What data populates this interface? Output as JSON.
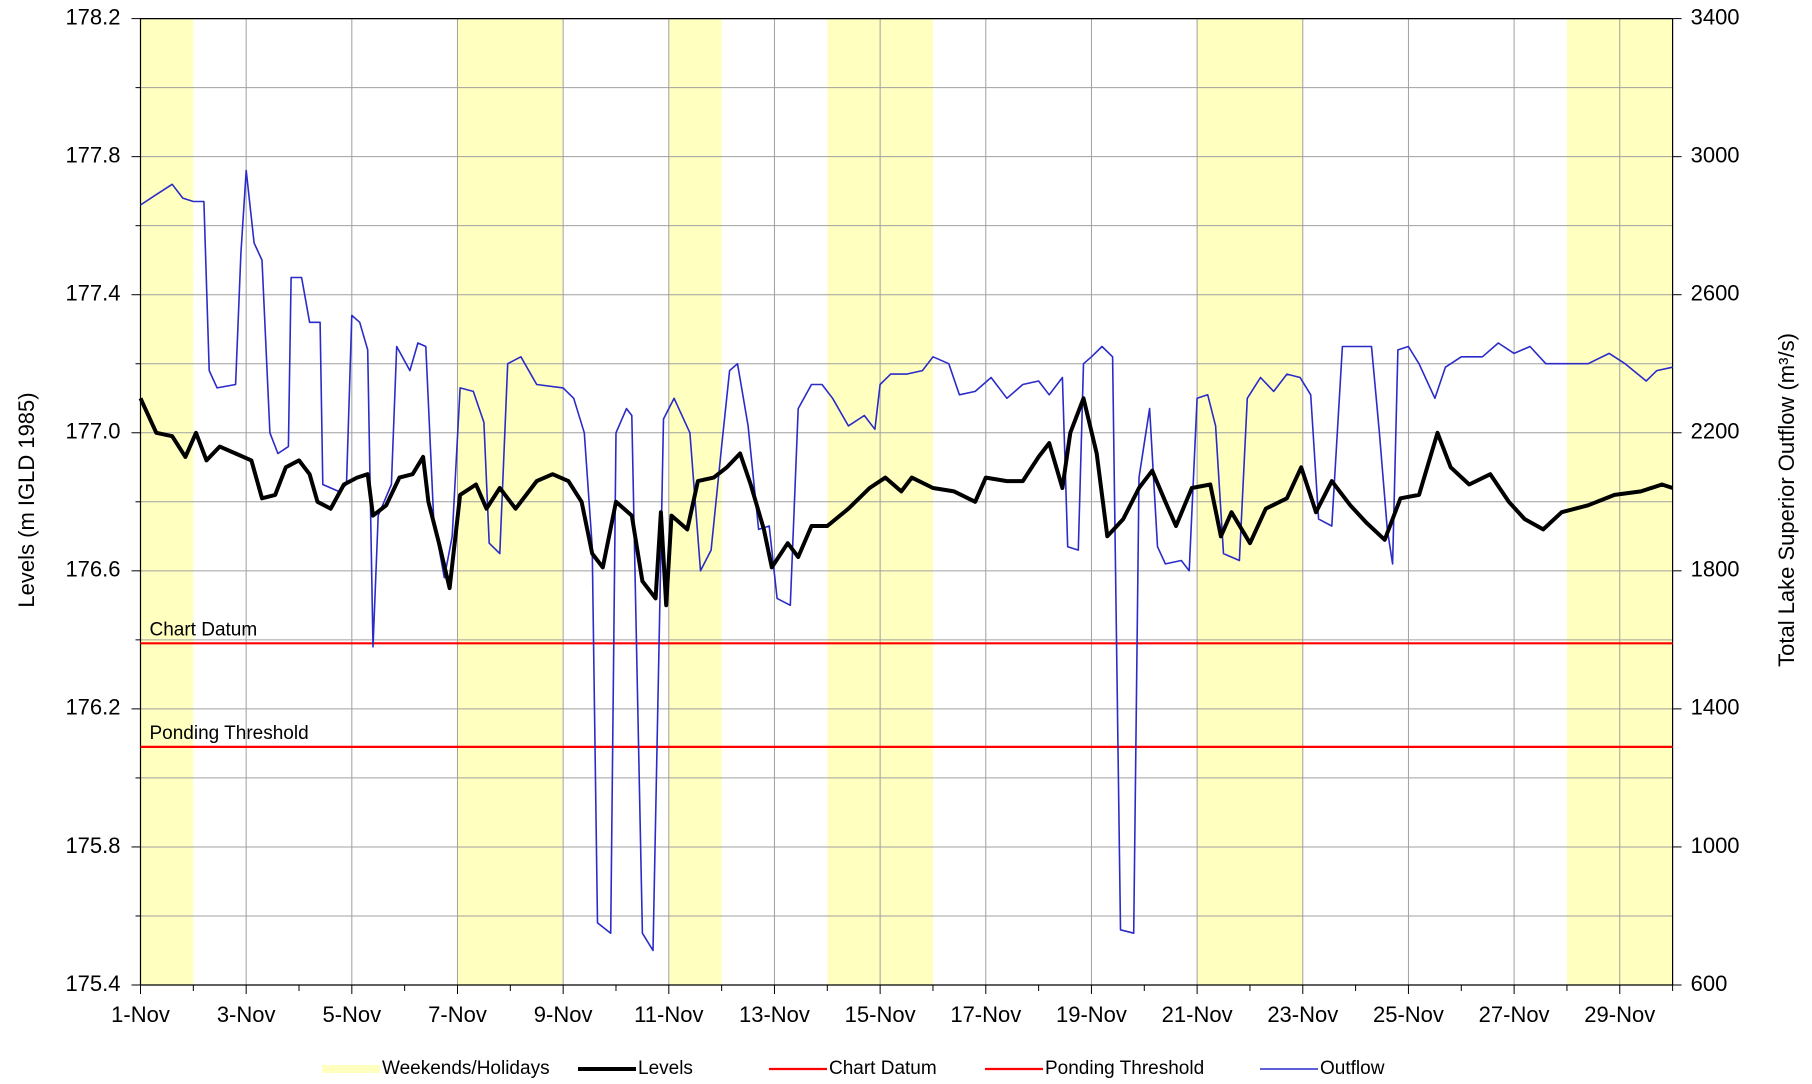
{
  "chart_data": {
    "type": "line",
    "xlim": [
      1,
      30
    ],
    "xticks": [
      {
        "value": 1,
        "label": "1-Nov"
      },
      {
        "value": 3,
        "label": "3-Nov"
      },
      {
        "value": 5,
        "label": "5-Nov"
      },
      {
        "value": 7,
        "label": "7-Nov"
      },
      {
        "value": 9,
        "label": "9-Nov"
      },
      {
        "value": 11,
        "label": "11-Nov"
      },
      {
        "value": 13,
        "label": "13-Nov"
      },
      {
        "value": 15,
        "label": "15-Nov"
      },
      {
        "value": 17,
        "label": "17-Nov"
      },
      {
        "value": 19,
        "label": "19-Nov"
      },
      {
        "value": 21,
        "label": "21-Nov"
      },
      {
        "value": 23,
        "label": "23-Nov"
      },
      {
        "value": 25,
        "label": "25-Nov"
      },
      {
        "value": 27,
        "label": "27-Nov"
      },
      {
        "value": 29,
        "label": "29-Nov"
      }
    ],
    "x_minor_ticks": [
      2,
      4,
      6,
      8,
      10,
      12,
      14,
      16,
      18,
      20,
      22,
      24,
      26,
      28,
      30
    ],
    "ylabel": "Levels (m IGLD 1985)",
    "ylim": [
      175.4,
      178.2
    ],
    "yticks": [
      175.4,
      175.8,
      176.2,
      176.6,
      {
        "value": 177,
        "label": "177.0"
      },
      177.4,
      177.8,
      178.2
    ],
    "y_minor_ticks": [
      175.6,
      176.0,
      176.4,
      176.8,
      177.2,
      177.6,
      178.0
    ],
    "y2label": "Total Lake Superior Outflow (m³/s)",
    "y2lim": [
      600,
      3400
    ],
    "y2ticks": [
      600,
      1000,
      1400,
      1800,
      2200,
      2600,
      3000,
      3400
    ],
    "grid": true,
    "legend": "bottom",
    "bands": {
      "name": "Weekends/Holidays",
      "color": "#ffffc0",
      "ranges": [
        [
          1,
          2
        ],
        [
          7,
          9
        ],
        [
          11,
          12
        ],
        [
          14,
          16
        ],
        [
          21,
          23
        ],
        [
          28,
          30
        ]
      ]
    },
    "series": [
      {
        "name": "Levels",
        "color": "#000000",
        "width": 4,
        "x": [
          1.0,
          1.3,
          1.6,
          1.85,
          2.05,
          2.25,
          2.5,
          2.8,
          3.1,
          3.3,
          3.55,
          3.75,
          4.0,
          4.2,
          4.35,
          4.6,
          4.85,
          5.1,
          5.3,
          5.4,
          5.65,
          5.9,
          6.15,
          6.35,
          6.45,
          6.65,
          6.85,
          7.05,
          7.35,
          7.55,
          7.8,
          8.1,
          8.5,
          8.8,
          9.1,
          9.35,
          9.55,
          9.75,
          10.0,
          10.3,
          10.5,
          10.75,
          10.85,
          10.95,
          11.05,
          11.35,
          11.55,
          11.85,
          12.1,
          12.35,
          12.55,
          12.8,
          12.95,
          13.25,
          13.45,
          13.7,
          14.0,
          14.4,
          14.8,
          15.1,
          15.4,
          15.6,
          16.0,
          16.4,
          16.8,
          17.0,
          17.4,
          17.7,
          18.0,
          18.2,
          18.45,
          18.6,
          18.85,
          19.1,
          19.3,
          19.6,
          19.9,
          20.15,
          20.4,
          20.6,
          20.9,
          21.25,
          21.45,
          21.65,
          22.0,
          22.3,
          22.7,
          22.97,
          23.25,
          23.55,
          23.9,
          24.2,
          24.55,
          24.85,
          25.2,
          25.55,
          25.8,
          26.15,
          26.55,
          26.9,
          27.2,
          27.55,
          27.9,
          28.4,
          28.9,
          29.4,
          29.8,
          30.0
        ],
        "values": [
          177.1,
          177.0,
          176.99,
          176.93,
          177.0,
          176.92,
          176.96,
          176.94,
          176.92,
          176.81,
          176.82,
          176.9,
          176.92,
          176.88,
          176.8,
          176.78,
          176.85,
          176.87,
          176.88,
          176.76,
          176.79,
          176.87,
          176.88,
          176.93,
          176.8,
          176.68,
          176.55,
          176.82,
          176.85,
          176.78,
          176.84,
          176.78,
          176.86,
          176.88,
          176.86,
          176.8,
          176.65,
          176.61,
          176.8,
          176.76,
          176.57,
          176.52,
          176.77,
          176.5,
          176.76,
          176.72,
          176.86,
          176.87,
          176.9,
          176.94,
          176.85,
          176.72,
          176.61,
          176.68,
          176.64,
          176.73,
          176.73,
          176.78,
          176.84,
          176.87,
          176.83,
          176.87,
          176.84,
          176.83,
          176.8,
          176.87,
          176.86,
          176.86,
          176.93,
          176.97,
          176.84,
          177.0,
          177.1,
          176.94,
          176.7,
          176.75,
          176.84,
          176.89,
          176.8,
          176.73,
          176.84,
          176.85,
          176.7,
          176.77,
          176.68,
          176.78,
          176.81,
          176.9,
          176.77,
          176.86,
          176.79,
          176.74,
          176.69,
          176.81,
          176.82,
          177.0,
          176.9,
          176.85,
          176.88,
          176.8,
          176.75,
          176.72,
          176.77,
          176.79,
          176.82,
          176.83,
          176.85,
          176.84
        ]
      },
      {
        "name": "Chart Datum",
        "color": "#ff0000",
        "value": 176.39
      },
      {
        "name": "Ponding Threshold",
        "color": "#ff0000",
        "value": 176.09
      },
      {
        "name": "Outflow",
        "color": "#2b2bc8",
        "width": 1.6,
        "axis": "y2",
        "x": [
          1.0,
          1.3,
          1.6,
          1.8,
          2.0,
          2.2,
          2.3,
          2.45,
          2.8,
          2.9,
          3.0,
          3.15,
          3.3,
          3.45,
          3.6,
          3.8,
          3.85,
          4.05,
          4.2,
          4.4,
          4.45,
          4.75,
          4.9,
          5.0,
          5.15,
          5.3,
          5.4,
          5.5,
          5.75,
          5.85,
          6.1,
          6.25,
          6.4,
          6.55,
          6.75,
          6.9,
          7.05,
          7.3,
          7.5,
          7.6,
          7.8,
          7.95,
          8.2,
          8.5,
          9.0,
          9.2,
          9.4,
          9.55,
          9.65,
          9.9,
          10.0,
          10.2,
          10.3,
          10.5,
          10.7,
          10.9,
          11.1,
          11.4,
          11.6,
          11.8,
          12.0,
          12.15,
          12.3,
          12.5,
          12.7,
          12.9,
          13.05,
          13.3,
          13.45,
          13.7,
          13.9,
          14.1,
          14.4,
          14.7,
          14.9,
          15.0,
          15.2,
          15.5,
          15.8,
          16.0,
          16.3,
          16.5,
          16.8,
          17.1,
          17.4,
          17.7,
          18.0,
          18.2,
          18.45,
          18.55,
          18.75,
          18.85,
          19.0,
          19.2,
          19.4,
          19.55,
          19.8,
          19.9,
          20.1,
          20.25,
          20.4,
          20.7,
          20.85,
          21.0,
          21.2,
          21.35,
          21.5,
          21.8,
          21.95,
          22.2,
          22.45,
          22.7,
          22.95,
          23.15,
          23.3,
          23.55,
          23.75,
          24.0,
          24.3,
          24.45,
          24.6,
          24.7,
          24.8,
          25.0,
          25.2,
          25.5,
          25.7,
          26.0,
          26.4,
          26.7,
          27.0,
          27.3,
          27.6,
          28.0,
          28.4,
          28.8,
          29.1,
          29.5,
          29.7,
          30.0
        ],
        "values": [
          2860,
          2890,
          2920,
          2880,
          2870,
          2870,
          2380,
          2330,
          2340,
          2720,
          2960,
          2750,
          2700,
          2200,
          2140,
          2160,
          2650,
          2650,
          2520,
          2520,
          2050,
          2030,
          2050,
          2540,
          2520,
          2440,
          1580,
          1960,
          2050,
          2450,
          2380,
          2460,
          2450,
          1950,
          1780,
          1900,
          2330,
          2320,
          2230,
          1880,
          1850,
          2400,
          2420,
          2340,
          2330,
          2300,
          2200,
          1870,
          780,
          750,
          2200,
          2270,
          2250,
          750,
          700,
          2240,
          2300,
          2200,
          1800,
          1860,
          2160,
          2380,
          2400,
          2220,
          1920,
          1930,
          1720,
          1700,
          2270,
          2340,
          2340,
          2300,
          2220,
          2250,
          2210,
          2340,
          2370,
          2370,
          2380,
          2420,
          2400,
          2310,
          2320,
          2360,
          2300,
          2340,
          2350,
          2310,
          2360,
          1870,
          1860,
          2400,
          2420,
          2450,
          2420,
          760,
          750,
          2070,
          2270,
          1870,
          1820,
          1830,
          1800,
          2300,
          2310,
          2220,
          1850,
          1830,
          2300,
          2360,
          2320,
          2370,
          2360,
          2310,
          1950,
          1930,
          2450,
          2450,
          2450,
          2200,
          1920,
          1820,
          2440,
          2450,
          2400,
          2300,
          2390,
          2420,
          2420,
          2460,
          2430,
          2450,
          2400,
          2400,
          2400,
          2430,
          2400,
          2350,
          2380,
          2390
        ]
      }
    ]
  }
}
